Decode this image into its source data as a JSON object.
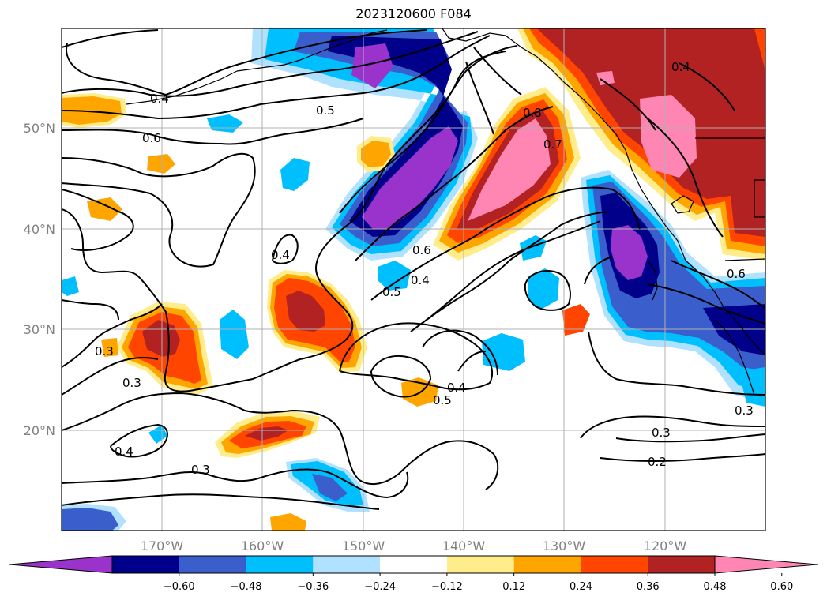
{
  "title": "2023120600 F084",
  "lat_labels": [
    "50°N",
    "40°N",
    "30°N",
    "20°N"
  ],
  "lon_labels": [
    "170°W",
    "160°W",
    "150°W",
    "140°W",
    "130°W",
    "120°W"
  ],
  "colorbar": {
    "ticks": [
      "−0.60",
      "−0.48",
      "−0.36",
      "−0.24",
      "−0.12",
      "0.12",
      "0.24",
      "0.36",
      "0.48",
      "0.60"
    ],
    "colors": [
      "#9933cc",
      "#00008b",
      "#3a5fcd",
      "#00bfff",
      "#b0e2ff",
      "#ffffff",
      "#ffec8b",
      "#ffa500",
      "#ff4500",
      "#b22222",
      "#ff85b3"
    ]
  },
  "contour_labels": [
    "0.4",
    "0.5",
    "0.6",
    "0.4",
    "0.8",
    "0.7",
    "0.6",
    "0.5",
    "0.4",
    "0.3",
    "0.3",
    "0.4",
    "0.5",
    "0.4",
    "0.3",
    "0.3",
    "0.2",
    "0.3",
    "0.6",
    "0.4"
  ]
}
